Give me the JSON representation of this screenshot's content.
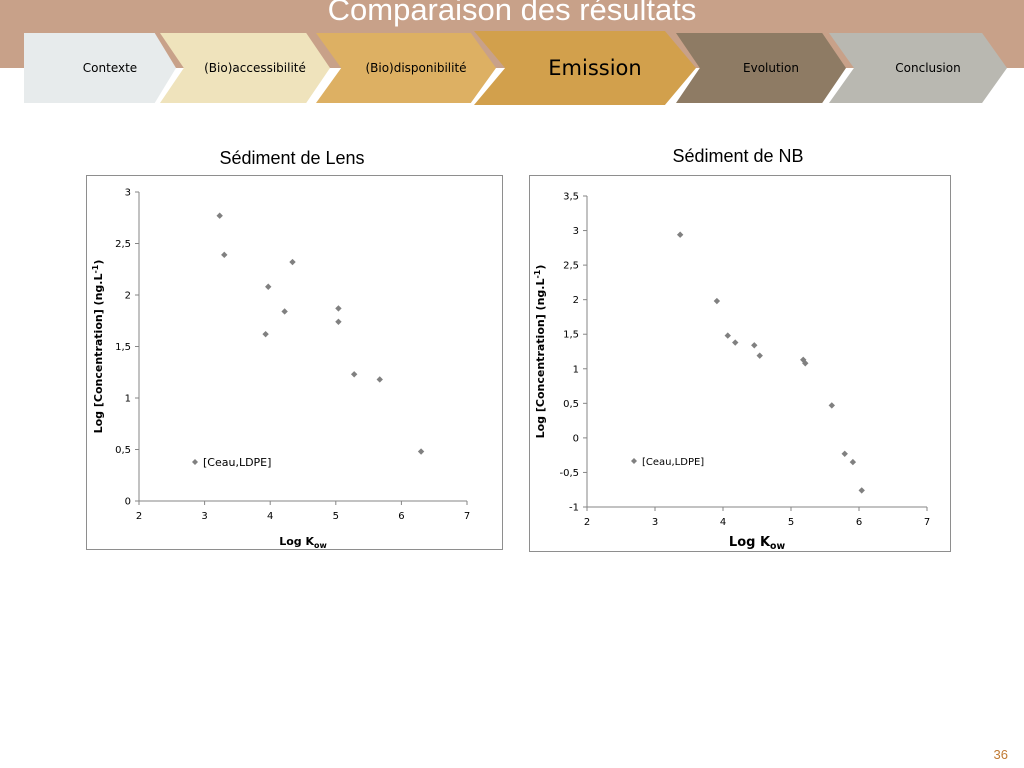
{
  "header": {
    "title": "Comparaison des résultats"
  },
  "nav": {
    "steps": [
      {
        "label": "Contexte",
        "color": "#e7ebec",
        "text_color": "#000000",
        "active": false
      },
      {
        "label": "(Bio)accessibilité",
        "color": "#efe3bc",
        "text_color": "#000000",
        "active": false
      },
      {
        "label": "(Bio)disponibilité",
        "color": "#ddb063",
        "text_color": "#000000",
        "active": false
      },
      {
        "label": "Emission",
        "color": "#d2a04c",
        "text_color": "#000000",
        "active": true
      },
      {
        "label": "Evolution",
        "color": "#8e7b64",
        "text_color": "#000000",
        "active": false
      },
      {
        "label": "Conclusion",
        "color": "#b9b8b1",
        "text_color": "#000000",
        "active": false
      }
    ]
  },
  "charts": [
    {
      "title": "Sédiment de Lens"
    },
    {
      "title": "Sédiment de NB"
    }
  ],
  "page_number": "36",
  "chart_data": [
    {
      "type": "scatter",
      "title": "Sédiment de Lens",
      "ylabel": "Log [Concentration] (ng.L-1)",
      "xlabel": "Log Kow",
      "xlim": [
        2,
        7
      ],
      "ylim": [
        0,
        3
      ],
      "xticks": [
        "2",
        "3",
        "4",
        "5",
        "6",
        "7"
      ],
      "yticks": [
        "0",
        "0,5",
        "1",
        "1,5",
        "2",
        "2,5",
        "3"
      ],
      "series": [
        {
          "name": "[Ceau,LDPE]",
          "color": "#808080",
          "points": [
            [
              3.23,
              2.77
            ],
            [
              3.3,
              2.39
            ],
            [
              3.93,
              1.62
            ],
            [
              3.97,
              2.08
            ],
            [
              4.22,
              1.84
            ],
            [
              4.34,
              2.32
            ],
            [
              5.04,
              1.87
            ],
            [
              5.04,
              1.74
            ],
            [
              5.28,
              1.23
            ],
            [
              5.67,
              1.18
            ],
            [
              6.3,
              0.48
            ]
          ]
        }
      ]
    },
    {
      "type": "scatter",
      "title": "Sédiment de NB",
      "ylabel": "Log [Concentration] (ng.L-1)",
      "xlabel": "Log Kow",
      "xlim": [
        2,
        7
      ],
      "ylim": [
        -1,
        3.5
      ],
      "xticks": [
        "2",
        "3",
        "4",
        "5",
        "6",
        "7"
      ],
      "yticks": [
        "-1",
        "-0,5",
        "0",
        "0,5",
        "1",
        "1,5",
        "2",
        "2,5",
        "3",
        "3,5"
      ],
      "series": [
        {
          "name": "[Ceau,LDPE]",
          "color": "#808080",
          "points": [
            [
              3.37,
              2.94
            ],
            [
              3.91,
              1.98
            ],
            [
              4.07,
              1.48
            ],
            [
              4.18,
              1.38
            ],
            [
              4.46,
              1.34
            ],
            [
              4.54,
              1.19
            ],
            [
              5.18,
              1.13
            ],
            [
              5.21,
              1.08
            ],
            [
              5.6,
              0.47
            ],
            [
              5.79,
              -0.23
            ],
            [
              5.91,
              -0.35
            ],
            [
              6.04,
              -0.76
            ]
          ]
        }
      ]
    }
  ]
}
